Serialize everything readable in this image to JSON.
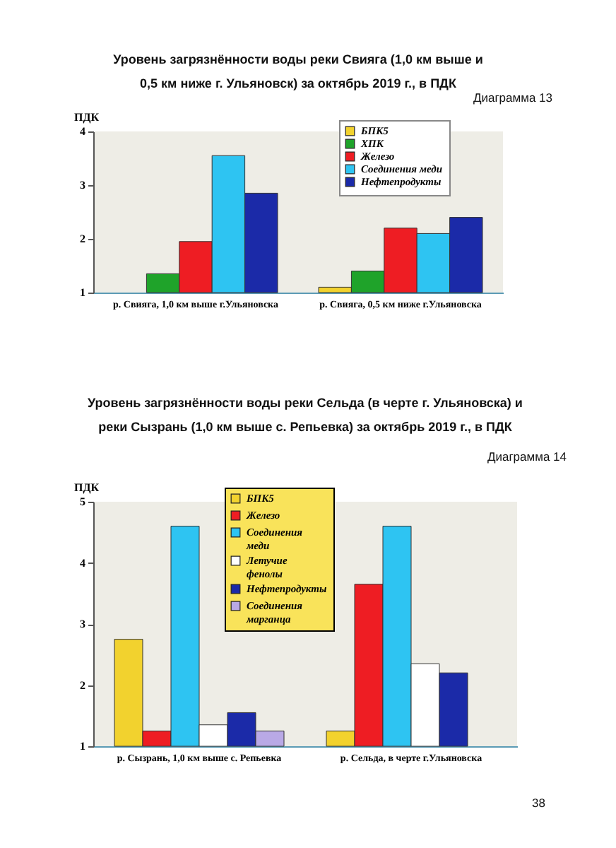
{
  "chart_data": [
    {
      "type": "bar",
      "title": "Уровень загрязнённости воды реки Свияга (1,0 км выше и 0,5 км ниже г. Ульяновск) за октябрь 2019 г., в ПДК",
      "ylabel": "ПДК",
      "annotations": [
        "Диаграмма 13"
      ],
      "categories": [
        "р. Свияга, 1,0 км выше г.Ульяновска",
        "р. Свияга, 0,5 км ниже г.Ульяновска"
      ],
      "series": [
        {
          "name": "БПК5",
          "color": "#f2d22e",
          "values": [
            null,
            1.1
          ]
        },
        {
          "name": "ХПК",
          "color": "#1fa32a",
          "values": [
            1.35,
            1.4
          ]
        },
        {
          "name": "Железо",
          "color": "#ee1d23",
          "values": [
            1.95,
            2.2
          ]
        },
        {
          "name": "Соединения меди",
          "color": "#2ec4f2",
          "values": [
            3.55,
            2.1
          ]
        },
        {
          "name": "Нефтепродукты",
          "color": "#1b2aa8",
          "values": [
            2.85,
            2.4
          ]
        }
      ],
      "ylim": [
        1,
        4
      ],
      "yticks": [
        1,
        2,
        3,
        4
      ],
      "legend": "top right"
    },
    {
      "type": "bar",
      "title": "Уровень загрязнённости воды реки Сельда (в черте г. Ульяновска) и реки Сызрань (1,0 км выше с. Репьевка) за октябрь 2019 г., в ПДК",
      "ylabel": "ПДК",
      "annotations": [
        "Диаграмма 14",
        "38"
      ],
      "categories": [
        "р. Сызрань, 1,0 км выше с. Репьевка",
        "р. Сельда, в черте г.Ульяновска"
      ],
      "series": [
        {
          "name": "БПК5",
          "color": "#f2d22e",
          "values": [
            2.75,
            1.25
          ]
        },
        {
          "name": "Железо",
          "color": "#ee1d23",
          "values": [
            1.25,
            3.65
          ]
        },
        {
          "name": "Соединения меди",
          "color": "#2ec4f2",
          "values": [
            4.6,
            4.6
          ]
        },
        {
          "name": "Летучие фенолы",
          "color": "#ffffff",
          "values": [
            1.35,
            2.35
          ]
        },
        {
          "name": "Нефтепродукты",
          "color": "#1b2aa8",
          "values": [
            1.55,
            2.2
          ]
        },
        {
          "name": "Соединения марганца",
          "color": "#b9a9e6",
          "values": [
            1.25,
            null
          ]
        }
      ],
      "ylim": [
        1,
        5
      ],
      "yticks": [
        1,
        2,
        3,
        4,
        5
      ],
      "legend": "top"
    }
  ]
}
